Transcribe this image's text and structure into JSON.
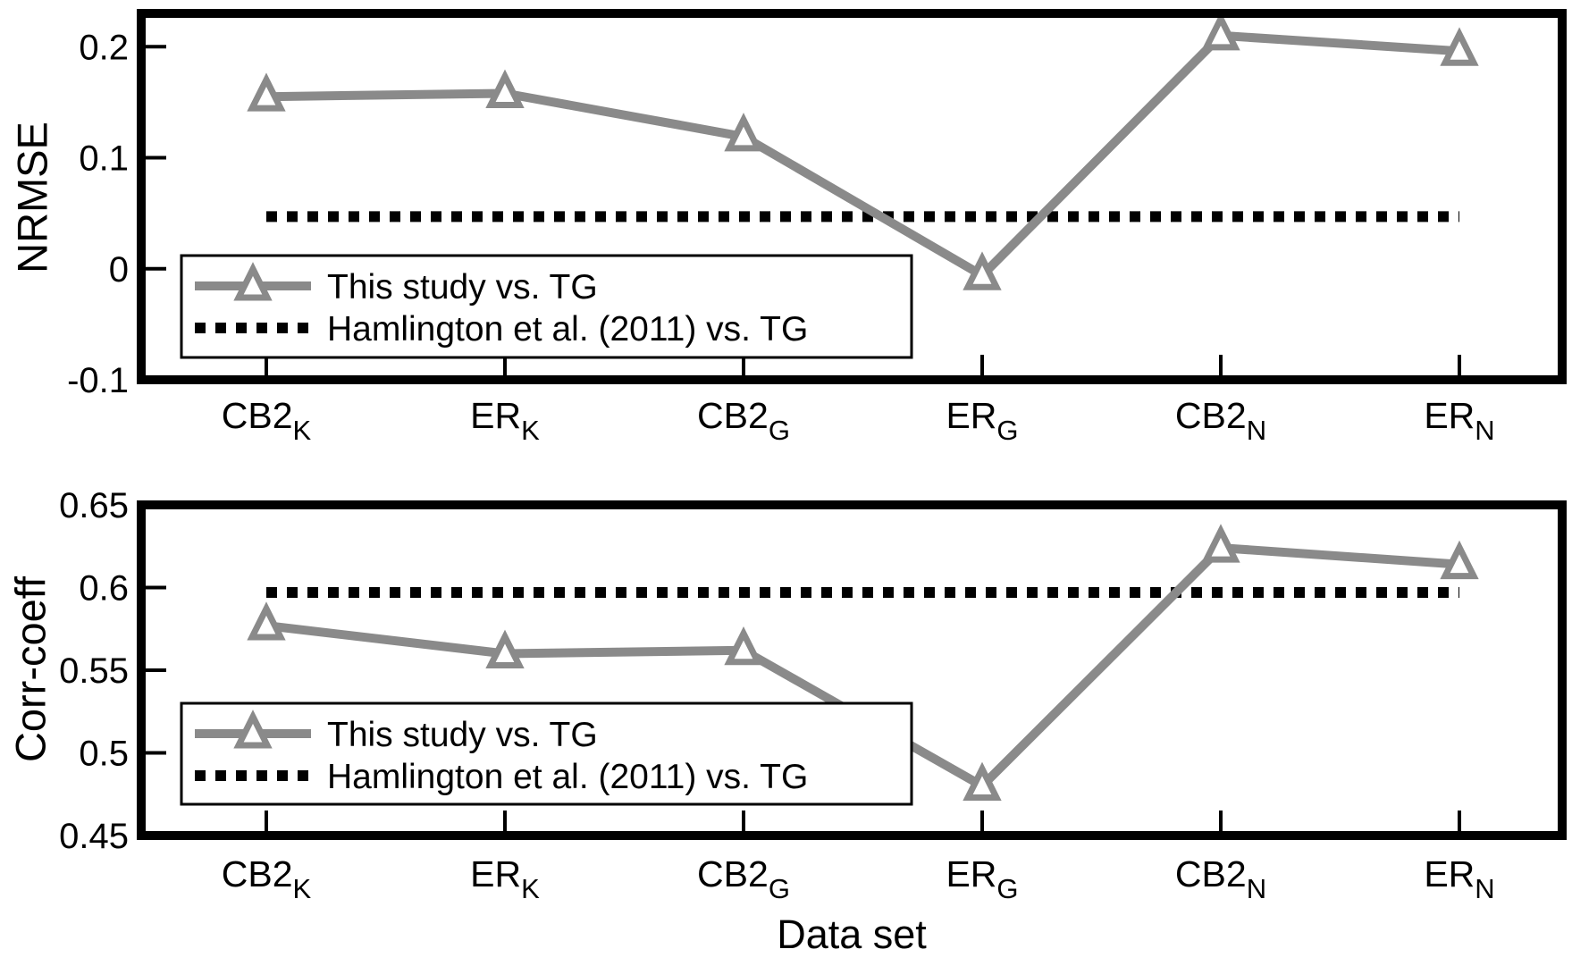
{
  "figure": {
    "background": "#ffffff",
    "text_color": "#000000"
  },
  "chart_data": [
    {
      "type": "line",
      "panel": "top",
      "title": "",
      "ylabel": "NRMSE",
      "xlabel": "",
      "ylim": [
        -0.1,
        0.23
      ],
      "ytick_values": [
        0.2,
        0.1,
        0,
        -0.1
      ],
      "ytick_labels": [
        "0.2",
        "0.1",
        "0",
        "-0.1"
      ],
      "categories": [
        {
          "main": "CB2",
          "sub": "K"
        },
        {
          "main": "ER",
          "sub": "K"
        },
        {
          "main": "CB2",
          "sub": "G"
        },
        {
          "main": "ER",
          "sub": "G"
        },
        {
          "main": "CB2",
          "sub": "N"
        },
        {
          "main": "ER",
          "sub": "N"
        }
      ],
      "series": [
        {
          "name": "This study vs. TG",
          "style": "solid",
          "marker": "open-triangle",
          "color": "#8a8a8a",
          "values": [
            0.155,
            0.158,
            0.119,
            -0.006,
            0.21,
            0.196
          ]
        },
        {
          "name": "Hamlington et al. (2011) vs. TG",
          "style": "dotted",
          "marker": "none",
          "color": "#000000",
          "values": [
            0.047,
            0.047,
            0.047,
            0.047,
            0.047,
            0.047
          ]
        }
      ],
      "legend_position": "lower-left",
      "grid": false
    },
    {
      "type": "line",
      "panel": "bottom",
      "title": "",
      "ylabel": "Corr-coeff",
      "xlabel": "Data set",
      "ylim": [
        0.45,
        0.65
      ],
      "ytick_values": [
        0.65,
        0.6,
        0.55,
        0.5,
        0.45
      ],
      "ytick_labels": [
        "0.65",
        "0.6",
        "0.55",
        "0.5",
        "0.45"
      ],
      "categories": [
        {
          "main": "CB2",
          "sub": "K"
        },
        {
          "main": "ER",
          "sub": "K"
        },
        {
          "main": "CB2",
          "sub": "G"
        },
        {
          "main": "ER",
          "sub": "G"
        },
        {
          "main": "CB2",
          "sub": "N"
        },
        {
          "main": "ER",
          "sub": "N"
        }
      ],
      "series": [
        {
          "name": "This study vs. TG",
          "style": "solid",
          "marker": "open-triangle",
          "color": "#8a8a8a",
          "values": [
            0.577,
            0.56,
            0.562,
            0.48,
            0.624,
            0.614
          ]
        },
        {
          "name": "Hamlington et al. (2011) vs. TG",
          "style": "dotted",
          "marker": "none",
          "color": "#000000",
          "values": [
            0.597,
            0.597,
            0.597,
            0.597,
            0.597,
            0.597
          ]
        }
      ],
      "legend_position": "lower-left",
      "grid": false
    }
  ]
}
